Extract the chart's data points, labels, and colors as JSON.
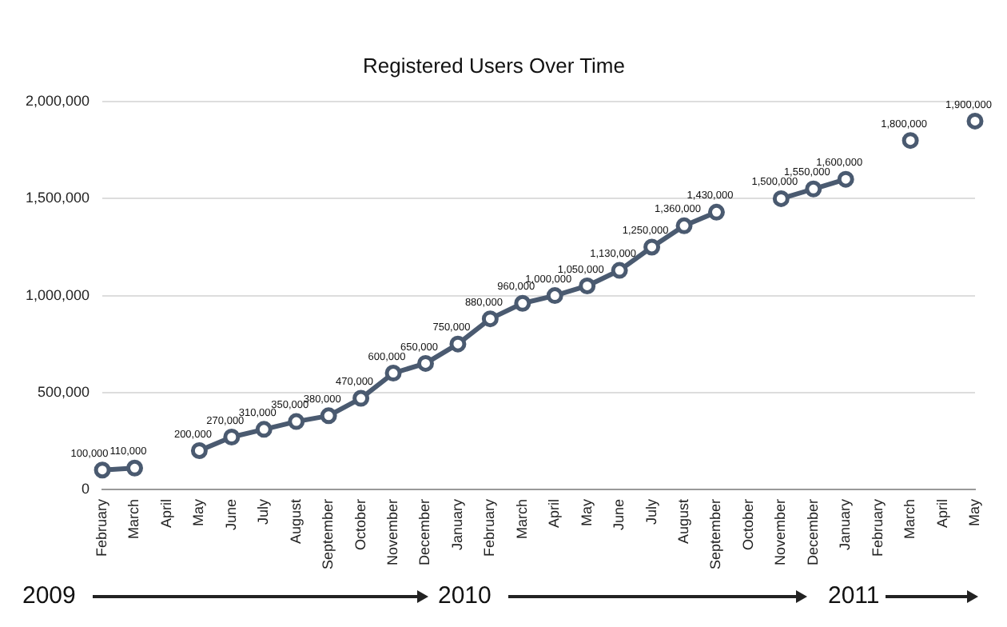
{
  "chart_data": {
    "type": "line",
    "title": "Registered Users Over Time",
    "categories": [
      "February",
      "March",
      "April",
      "May",
      "June",
      "July",
      "August",
      "September",
      "October",
      "November",
      "December",
      "January",
      "February",
      "March",
      "April",
      "May",
      "June",
      "July",
      "August",
      "September",
      "October",
      "November",
      "December",
      "January",
      "February",
      "March",
      "April",
      "May"
    ],
    "series": [
      {
        "color": "#4a5a70",
        "values": [
          100000,
          110000,
          null,
          200000,
          270000,
          310000,
          350000,
          380000,
          470000,
          600000,
          650000,
          750000,
          880000,
          960000,
          1000000,
          1050000,
          1130000,
          1250000,
          1360000,
          1430000,
          null,
          1500000,
          1550000,
          1600000,
          null,
          1800000,
          null,
          1900000
        ]
      }
    ],
    "value_labels": [
      "100,000",
      "110,000",
      null,
      "200,000",
      "270,000",
      "310,000",
      "350,000",
      "380,000",
      "470,000",
      "600,000",
      "650,000",
      "750,000",
      "880,000",
      "960,000",
      "1,000,000",
      "1,050,000",
      "1,130,000",
      "1,250,000",
      "1,360,000",
      "1,430,000",
      null,
      "1,500,000",
      "1,550,000",
      "1,600,000",
      null,
      "1,800,000",
      null,
      "1,900,000"
    ],
    "ylim": [
      0,
      2000000
    ],
    "yticks": [
      0,
      {
        "value": 500000,
        "label": "500,000"
      },
      {
        "value": 1000000,
        "label": "1,000,000"
      },
      {
        "value": 1500000,
        "label": "1,500,000"
      },
      {
        "value": 2000000,
        "label": "2,000,000"
      }
    ],
    "grid": "y",
    "legend": false,
    "marker": "circle",
    "line_style": "solid",
    "annotations": [
      "2009",
      "2010",
      "2011"
    ]
  }
}
